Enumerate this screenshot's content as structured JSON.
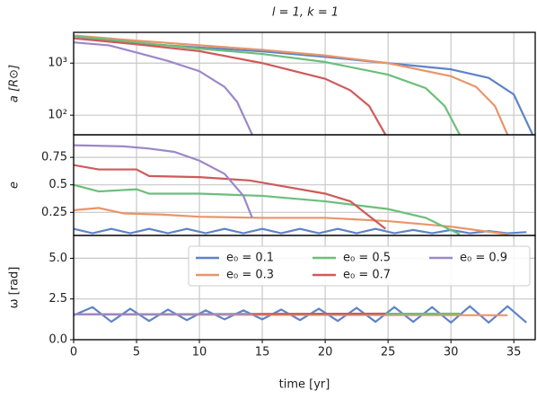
{
  "chart_data": [
    {
      "type": "line",
      "title": "l = 1, k = 1",
      "ylabel": "a [R⊙]",
      "log": true,
      "grid": true,
      "xlim": [
        0,
        36.7
      ],
      "xticks": [
        0,
        5,
        10,
        15,
        20,
        25,
        30,
        35
      ],
      "ylim": [
        42,
        3900
      ],
      "yticks": [
        {
          "value": 100,
          "label": "10²"
        },
        {
          "value": 1000,
          "label": "10³"
        }
      ],
      "series": [
        {
          "name": "e₀ = 0.1",
          "color": "#5f83c8",
          "x": [
            0,
            5,
            10,
            15,
            20,
            25,
            30,
            33,
            35,
            36.5
          ],
          "values": [
            3300,
            2400,
            2000,
            1680,
            1320,
            1000,
            760,
            520,
            250,
            42
          ]
        },
        {
          "name": "e₀ = 0.3",
          "color": "#e8956b",
          "x": [
            0,
            5,
            10,
            15,
            20,
            25,
            30,
            32,
            33.5,
            34.5
          ],
          "values": [
            3400,
            2700,
            2200,
            1800,
            1400,
            1000,
            560,
            350,
            150,
            42
          ]
        },
        {
          "name": "e₀ = 0.5",
          "color": "#6bbf7a",
          "x": [
            0,
            5,
            10,
            15,
            20,
            25,
            28,
            29.5,
            30.7
          ],
          "values": [
            3300,
            2500,
            1900,
            1500,
            1050,
            600,
            330,
            150,
            42
          ]
        },
        {
          "name": "e₀ = 0.7",
          "color": "#cf5a5a",
          "x": [
            0,
            5,
            10,
            15,
            20,
            22,
            23.5,
            24.8
          ],
          "values": [
            3000,
            2300,
            1700,
            1000,
            500,
            300,
            150,
            42
          ]
        },
        {
          "name": "e₀ = 0.9",
          "color": "#9b88c8",
          "x": [
            0,
            2.8,
            5,
            7.5,
            10,
            12,
            13,
            14.2
          ],
          "values": [
            2500,
            2200,
            1600,
            1100,
            700,
            350,
            180,
            42
          ]
        }
      ]
    },
    {
      "type": "line",
      "ylabel": "e",
      "grid": true,
      "xlim": [
        0,
        36.7
      ],
      "xticks": [
        0,
        5,
        10,
        15,
        20,
        25,
        30,
        35
      ],
      "ylim": [
        0.04,
        0.955
      ],
      "yticks": [
        0.25,
        0.5,
        0.75
      ],
      "series": [
        {
          "name": "e₀ = 0.1",
          "color": "#5f83c8",
          "x": [
            0,
            1.5,
            3,
            4.5,
            6,
            7.5,
            9,
            10.5,
            12,
            13.5,
            15,
            16.5,
            18,
            19.5,
            21,
            22.5,
            24,
            25.5,
            27,
            28.5,
            30,
            31.5,
            33,
            34.5,
            36
          ],
          "values": [
            0.1,
            0.06,
            0.1,
            0.06,
            0.1,
            0.06,
            0.1,
            0.06,
            0.1,
            0.06,
            0.1,
            0.06,
            0.1,
            0.06,
            0.1,
            0.06,
            0.1,
            0.06,
            0.09,
            0.06,
            0.09,
            0.06,
            0.08,
            0.06,
            0.07
          ]
        },
        {
          "name": "e₀ = 0.3",
          "color": "#e8956b",
          "x": [
            0,
            2,
            4,
            7,
            10,
            15,
            20,
            25,
            30,
            34.5
          ],
          "values": [
            0.27,
            0.29,
            0.24,
            0.23,
            0.21,
            0.2,
            0.2,
            0.17,
            0.12,
            0.05
          ]
        },
        {
          "name": "e₀ = 0.5",
          "color": "#6bbf7a",
          "x": [
            0,
            2,
            5,
            6,
            10,
            15,
            20,
            25,
            28,
            30.7
          ],
          "values": [
            0.5,
            0.44,
            0.46,
            0.42,
            0.42,
            0.4,
            0.35,
            0.28,
            0.2,
            0.05
          ]
        },
        {
          "name": "e₀ = 0.7",
          "color": "#cf5a5a",
          "x": [
            0,
            2,
            5,
            6,
            10,
            14,
            16,
            20,
            22,
            24.8
          ],
          "values": [
            0.68,
            0.64,
            0.64,
            0.58,
            0.57,
            0.54,
            0.5,
            0.42,
            0.35,
            0.1
          ]
        },
        {
          "name": "e₀ = 0.9",
          "color": "#9b88c8",
          "x": [
            0,
            4,
            6,
            8,
            10,
            12,
            13.5,
            14.2
          ],
          "values": [
            0.86,
            0.85,
            0.83,
            0.8,
            0.72,
            0.6,
            0.4,
            0.2
          ]
        }
      ]
    },
    {
      "type": "line",
      "ylabel": "ω [rad]",
      "xlabel": "time [yr]",
      "grid": true,
      "legend": "upper right",
      "xlim": [
        0,
        36.7
      ],
      "xticks": [
        0,
        5,
        10,
        15,
        20,
        25,
        30,
        35
      ],
      "ylim": [
        0,
        6.4
      ],
      "yticks": [
        {
          "value": 0,
          "label": "0.0"
        },
        2.5,
        {
          "value": 5,
          "label": "5.0"
        }
      ],
      "series": [
        {
          "name": "e₀ = 0.1",
          "color": "#5f83c8",
          "x": [
            0,
            1.5,
            3,
            4.5,
            6,
            7.5,
            9,
            10.5,
            12,
            13.5,
            15,
            16.5,
            18,
            19.5,
            21,
            22.5,
            24,
            25.5,
            27,
            28.5,
            30,
            31.5,
            33,
            34.5,
            36
          ],
          "values": [
            1.5,
            2.0,
            1.1,
            1.9,
            1.15,
            1.85,
            1.2,
            1.8,
            1.25,
            1.8,
            1.25,
            1.85,
            1.2,
            1.9,
            1.15,
            1.95,
            1.1,
            2.0,
            1.1,
            2.0,
            1.05,
            2.05,
            1.05,
            2.05,
            1.05
          ]
        },
        {
          "name": "e₀ = 0.3",
          "color": "#e8956b",
          "x": [
            0,
            34.5
          ],
          "values": [
            1.55,
            1.5
          ]
        },
        {
          "name": "e₀ = 0.5",
          "color": "#6bbf7a",
          "x": [
            0,
            30.7
          ],
          "values": [
            1.55,
            1.6
          ]
        },
        {
          "name": "e₀ = 0.7",
          "color": "#cf5a5a",
          "x": [
            0,
            24.8
          ],
          "values": [
            1.55,
            1.6
          ]
        },
        {
          "name": "e₀ = 0.9",
          "color": "#9b88c8",
          "x": [
            0,
            14.2
          ],
          "values": [
            1.55,
            1.58
          ]
        }
      ]
    }
  ]
}
